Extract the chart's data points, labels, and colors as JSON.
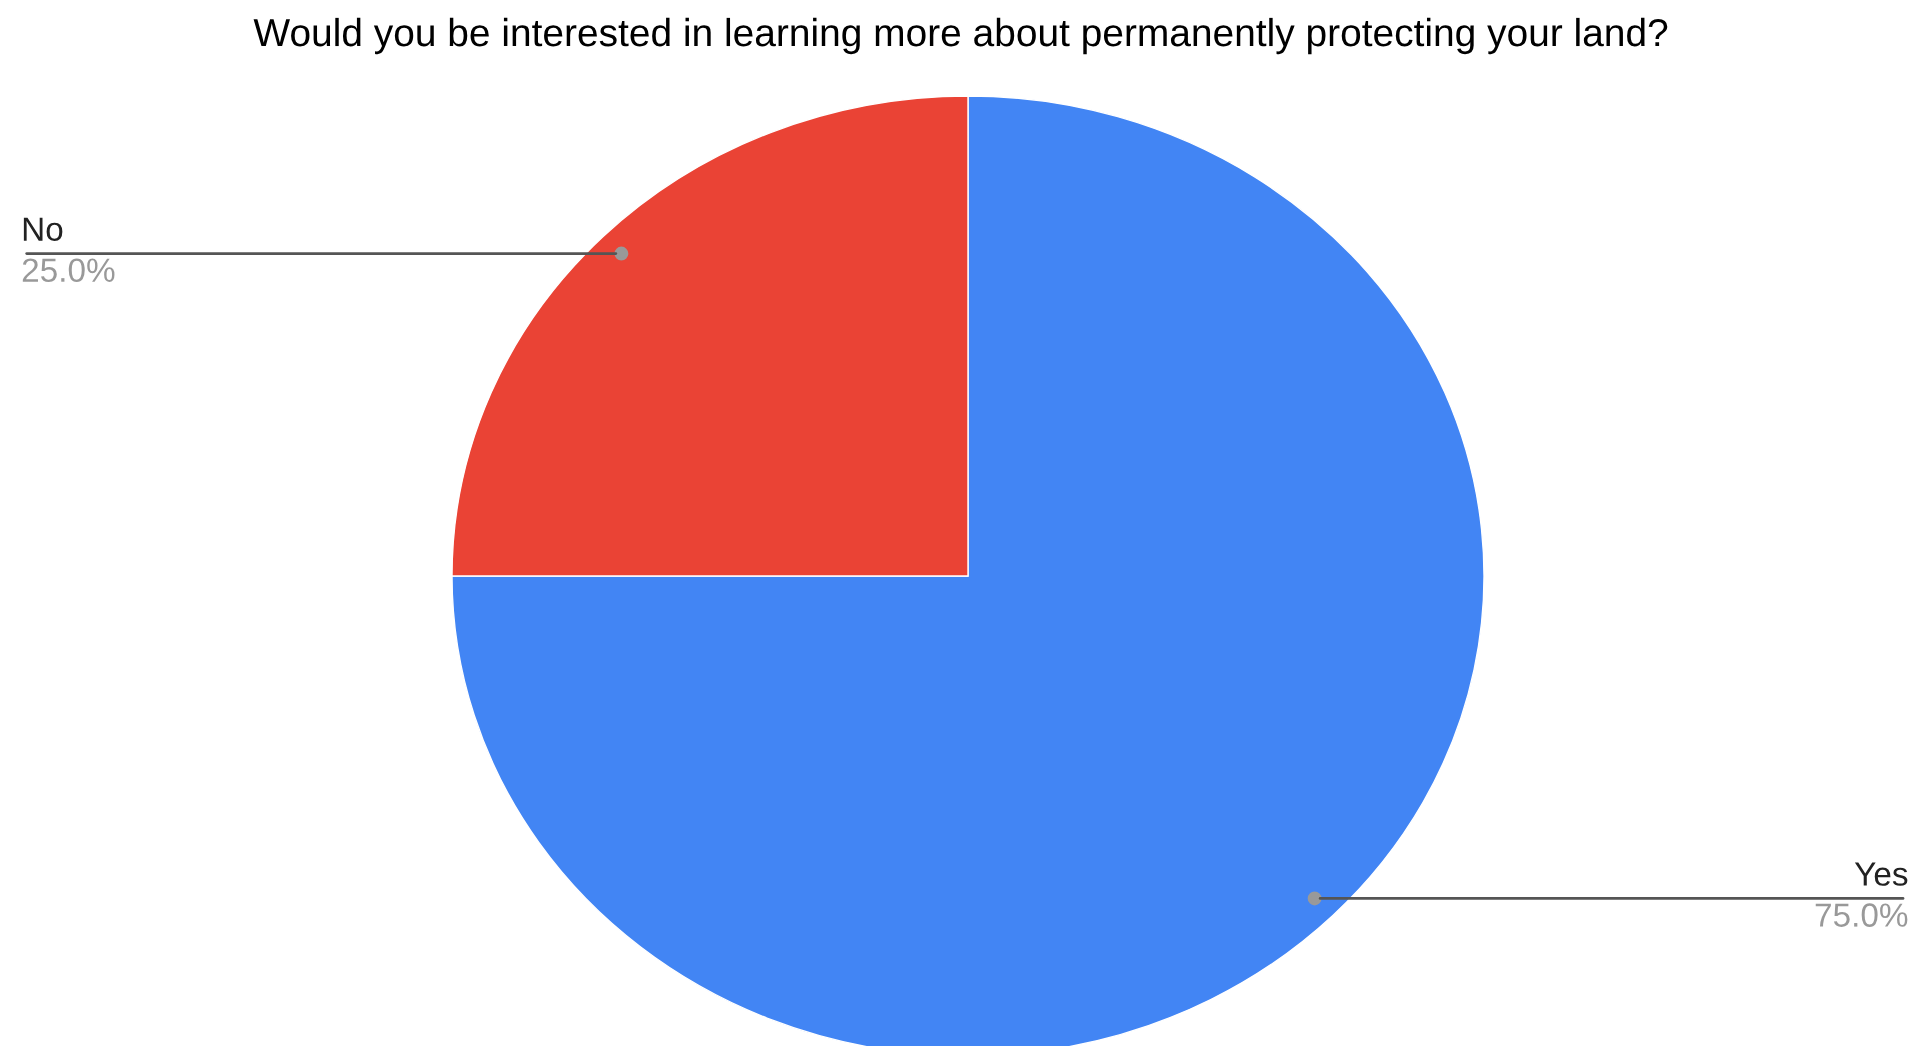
{
  "chart_data": {
    "type": "pie",
    "title": "Would you be interested in learning more about permanently protecting your land?",
    "categories": [
      "Yes",
      "No"
    ],
    "values": [
      75,
      25
    ],
    "value_labels": [
      "75.0%",
      "25.0%"
    ],
    "colors": [
      "#4285f4",
      "#ea4335"
    ],
    "legend": false
  }
}
